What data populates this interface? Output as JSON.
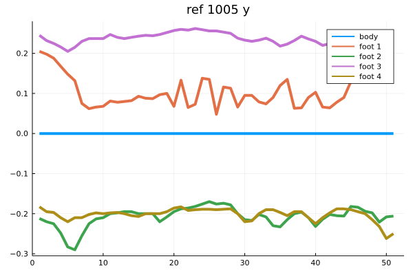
{
  "chart_data": {
    "type": "line",
    "title": "ref 1005 y",
    "xlabel": "",
    "ylabel": "",
    "xlim": [
      0,
      52.5
    ],
    "ylim": [
      -0.305,
      0.28
    ],
    "xticks": [
      0,
      10,
      20,
      30,
      40,
      50
    ],
    "xtick_labels": [
      "0",
      "10",
      "20",
      "30",
      "40",
      "50"
    ],
    "yticks": [
      -0.3,
      -0.2,
      -0.1,
      0.0,
      0.1,
      0.2
    ],
    "ytick_labels": [
      "−0.3",
      "−0.2",
      "−0.1",
      "0.0",
      "0.1",
      "0.2"
    ],
    "grid": true,
    "legend_position": "top-right",
    "x": [
      1,
      2,
      3,
      4,
      5,
      6,
      7,
      8,
      9,
      10,
      11,
      12,
      13,
      14,
      15,
      16,
      17,
      18,
      19,
      20,
      21,
      22,
      23,
      24,
      25,
      26,
      27,
      28,
      29,
      30,
      31,
      32,
      33,
      34,
      35,
      36,
      37,
      38,
      39,
      40,
      41,
      42,
      43,
      44,
      45,
      46,
      47,
      48,
      49,
      50,
      51
    ],
    "series": [
      {
        "name": "body",
        "color": "#009af9",
        "values": [
          0,
          0,
          0,
          0,
          0,
          0,
          0,
          0,
          0,
          0,
          0,
          0,
          0,
          0,
          0,
          0,
          0,
          0,
          0,
          0,
          0,
          0,
          0,
          0,
          0,
          0,
          0,
          0,
          0,
          0,
          0,
          0,
          0,
          0,
          0,
          0,
          0,
          0,
          0,
          0,
          0,
          0,
          0,
          0,
          0,
          0,
          0,
          0,
          0,
          0,
          0
        ]
      },
      {
        "name": "foot 1",
        "color": "#e26f46",
        "values": [
          0.205,
          0.198,
          0.188,
          0.168,
          0.148,
          0.132,
          0.075,
          0.062,
          0.066,
          0.068,
          0.081,
          0.078,
          0.08,
          0.082,
          0.093,
          0.088,
          0.087,
          0.097,
          0.1,
          0.068,
          0.133,
          0.065,
          0.073,
          0.138,
          0.135,
          0.048,
          0.116,
          0.113,
          0.066,
          0.095,
          0.095,
          0.079,
          0.074,
          0.09,
          0.12,
          0.135,
          0.063,
          0.064,
          0.09,
          0.103,
          0.066,
          0.064,
          0.078,
          0.09,
          0.13,
          0.17,
          0.2,
          0.215,
          0.218,
          0.212,
          0.218
        ]
      },
      {
        "name": "foot 2",
        "color": "#3da44d",
        "values": [
          -0.212,
          -0.22,
          -0.225,
          -0.248,
          -0.283,
          -0.29,
          -0.255,
          -0.225,
          -0.213,
          -0.21,
          -0.2,
          -0.198,
          -0.195,
          -0.195,
          -0.2,
          -0.2,
          -0.2,
          -0.22,
          -0.208,
          -0.195,
          -0.188,
          -0.186,
          -0.182,
          -0.176,
          -0.17,
          -0.176,
          -0.174,
          -0.178,
          -0.2,
          -0.215,
          -0.217,
          -0.202,
          -0.208,
          -0.23,
          -0.233,
          -0.215,
          -0.2,
          -0.196,
          -0.21,
          -0.232,
          -0.214,
          -0.202,
          -0.205,
          -0.206,
          -0.182,
          -0.184,
          -0.194,
          -0.198,
          -0.221,
          -0.208,
          -0.206
        ]
      },
      {
        "name": "foot 3",
        "color": "#c271d2",
        "values": [
          0.245,
          0.232,
          0.225,
          0.216,
          0.205,
          0.215,
          0.23,
          0.237,
          0.237,
          0.237,
          0.247,
          0.24,
          0.237,
          0.24,
          0.243,
          0.245,
          0.244,
          0.247,
          0.252,
          0.257,
          0.26,
          0.258,
          0.262,
          0.259,
          0.256,
          0.256,
          0.253,
          0.25,
          0.238,
          0.233,
          0.23,
          0.233,
          0.238,
          0.23,
          0.218,
          0.223,
          0.232,
          0.243,
          0.236,
          0.23,
          0.22,
          0.224,
          0.232,
          0.23,
          0.225,
          0.215,
          0.21,
          0.205,
          0.195,
          0.182,
          0.17
        ]
      },
      {
        "name": "foot 4",
        "color": "#ac8e18",
        "values": [
          -0.183,
          -0.195,
          -0.197,
          -0.21,
          -0.22,
          -0.21,
          -0.21,
          -0.202,
          -0.198,
          -0.2,
          -0.198,
          -0.197,
          -0.2,
          -0.205,
          -0.207,
          -0.2,
          -0.2,
          -0.2,
          -0.195,
          -0.186,
          -0.183,
          -0.192,
          -0.19,
          -0.189,
          -0.189,
          -0.19,
          -0.189,
          -0.188,
          -0.2,
          -0.22,
          -0.218,
          -0.2,
          -0.19,
          -0.19,
          -0.197,
          -0.205,
          -0.195,
          -0.195,
          -0.21,
          -0.225,
          -0.21,
          -0.198,
          -0.188,
          -0.188,
          -0.19,
          -0.195,
          -0.2,
          -0.215,
          -0.232,
          -0.262,
          -0.25
        ]
      }
    ]
  }
}
